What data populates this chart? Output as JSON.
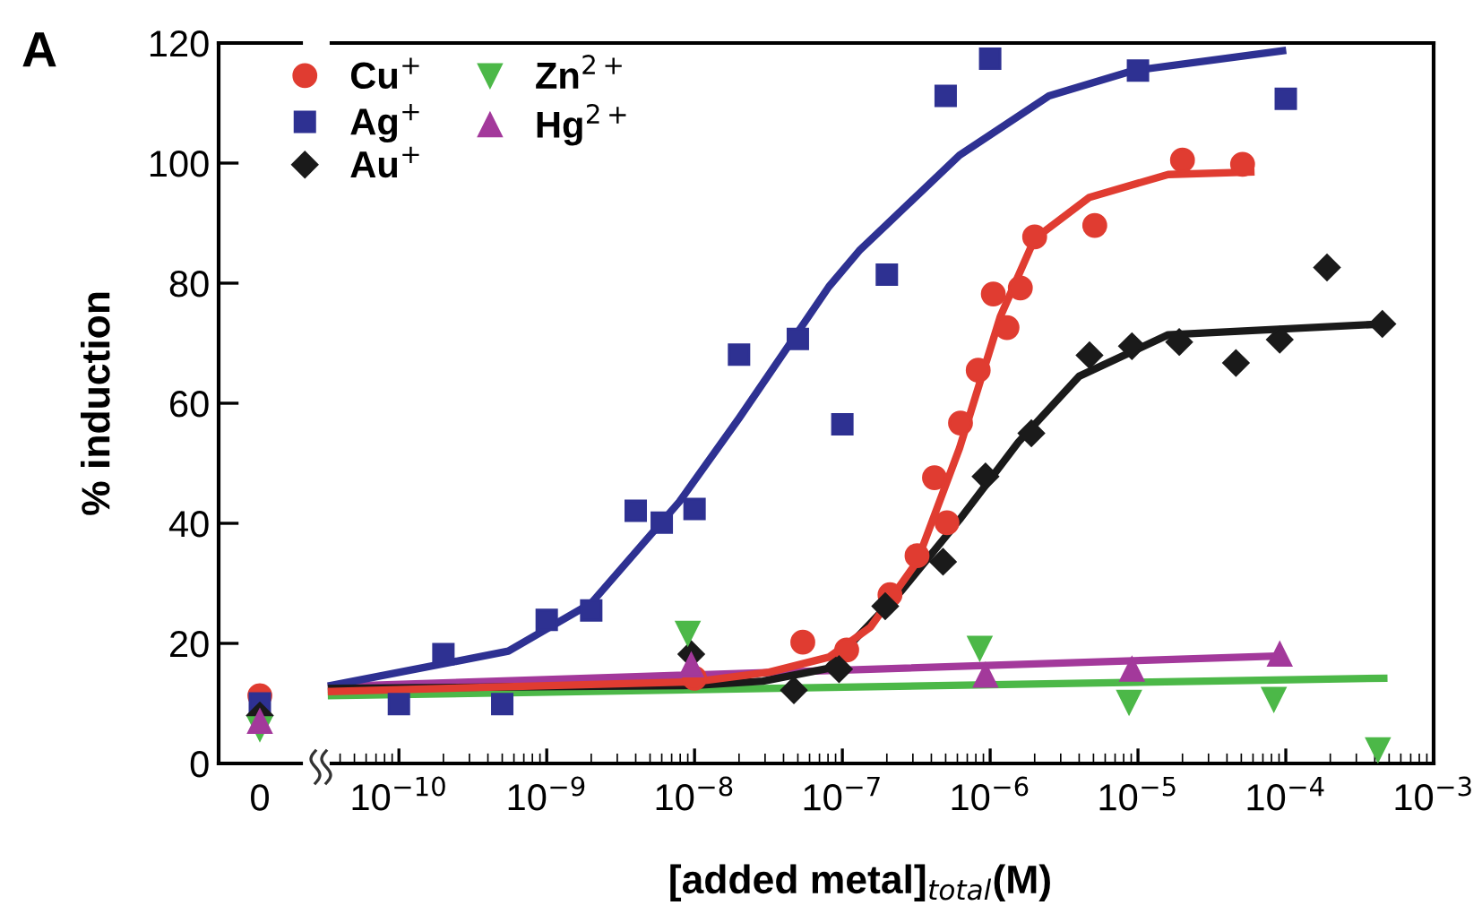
{
  "chart_data": [
    {
      "type": "scatter",
      "title": "A",
      "ylabel": "% induction",
      "categories": [
        "0"
      ],
      "ylim": [
        0,
        120
      ],
      "yticks": [
        0,
        20,
        40,
        60,
        80,
        100,
        120
      ],
      "legend": false,
      "series": [
        {
          "color": "#e03c31",
          "marker": "circle",
          "values": [
            11.3
          ]
        },
        {
          "color": "#2e3192",
          "marker": "square",
          "values": [
            10
          ]
        },
        {
          "color": "#1a1a1a",
          "marker": "diamond",
          "values": [
            8
          ]
        },
        {
          "color": "#4cb848",
          "marker": "triangle_down",
          "values": [
            5.8
          ]
        },
        {
          "color": "#a3399b",
          "marker": "triangle",
          "values": [
            7
          ]
        }
      ]
    },
    {
      "type": "scatter",
      "xlabel": "[added metal]$_{total}$(M)",
      "log": "x",
      "xlim": [
        3.5e-11,
        0.001
      ],
      "xticks": [
        {
          "value": 1e-10,
          "label": "10$^{−10}$"
        },
        {
          "value": 1e-09,
          "label": "10$^{−9}$"
        },
        {
          "value": 1e-08,
          "label": "10$^{−8}$"
        },
        {
          "value": 1e-07,
          "label": "10$^{−7}$"
        },
        {
          "value": 1e-06,
          "label": "10$^{−6}$"
        },
        {
          "value": 1e-05,
          "label": "10$^{−5}$"
        },
        {
          "value": 0.0001,
          "label": "10$^{−4}$"
        },
        {
          "value": 0.001,
          "label": "10$^{−3}$"
        }
      ],
      "ylim": [
        0,
        120
      ],
      "tick_labels": "x",
      "legend": "top left",
      "series": [
        {
          "name": "Cu$^{+}$",
          "color": "#e03c31",
          "marker": "circle",
          "x": [
            1e-08,
            5.4e-08,
            1.07e-07,
            2.1e-07,
            3.2e-07,
            4.2e-07,
            5.1e-07,
            6.3e-07,
            8.3e-07,
            1.05e-06,
            1.3e-06,
            1.6e-06,
            2e-06,
            5.1e-06,
            2e-05,
            5.1e-05
          ],
          "values": [
            14.2,
            20.2,
            18.9,
            28.1,
            34.6,
            47.6,
            40.1,
            56.7,
            65.5,
            78.2,
            72.6,
            79.2,
            87.7,
            89.6,
            100.5,
            99.8
          ]
        },
        {
          "name": "Ag$^{+}$",
          "color": "#2e3192",
          "marker": "square",
          "x": [
            1e-10,
            2e-10,
            5e-10,
            1e-09,
            2e-09,
            4e-09,
            6e-09,
            1e-08,
            2e-08,
            5e-08,
            1e-07,
            2e-07,
            5e-07,
            1e-06,
            1e-05,
            0.0001
          ],
          "values": [
            9.9,
            18.2,
            9.9,
            23.9,
            25.5,
            42.1,
            40.1,
            42.4,
            68.1,
            70.7,
            56.5,
            81.4,
            111.2,
            117.4,
            115.4,
            110.7
          ]
        },
        {
          "name": "Au$^{+}$",
          "color": "#1a1a1a",
          "marker": "diamond",
          "x": [
            9.5e-09,
            4.7e-08,
            9.5e-08,
            1.95e-07,
            4.8e-07,
            9.3e-07,
            1.9e-06,
            4.7e-06,
            9.1e-06,
            1.9e-05,
            4.6e-05,
            9.1e-05,
            0.00019,
            0.00045
          ],
          "values": [
            18.2,
            12.2,
            15.7,
            26.2,
            33.6,
            47.8,
            55.0,
            68.0,
            69.5,
            70.2,
            66.7,
            70.6,
            82.6,
            73.2
          ]
        },
        {
          "name": "Zn$^{2+}$",
          "color": "#4cb848",
          "marker": "triangle_down",
          "x": [
            9e-09,
            8.5e-07,
            8.7e-06,
            8.3e-05,
            0.00042
          ],
          "values": [
            21.7,
            19.2,
            10.2,
            10.7,
            2.3
          ]
        },
        {
          "name": "Hg$^{2+}$",
          "color": "#a3399b",
          "marker": "triangle",
          "x": [
            9.5e-09,
            9.3e-07,
            9.1e-06,
            9.1e-05
          ],
          "values": [
            16.4,
            14.7,
            15.7,
            18.2
          ]
        },
        {
          "type": "line",
          "color": "#4cb848",
          "x": [
            3.5e-11,
            0.00046
          ],
          "values": [
            11.3,
            14.2
          ]
        },
        {
          "type": "line",
          "color": "#a3399b",
          "x": [
            3.5e-11,
            9.1e-05
          ],
          "values": [
            12.8,
            17.9
          ]
        },
        {
          "type": "line",
          "color": "#2e3192",
          "x": [
            3.5e-11,
            5.5e-10,
            2e-09,
            7.9e-09,
            2e-08,
            8.1e-08,
            1.3e-07,
            6.2e-07,
            2.5e-06,
            9.3e-06,
            9.5e-05
          ],
          "values": [
            13,
            18.7,
            26.7,
            43.6,
            57.5,
            79.4,
            85.4,
            101.3,
            111.2,
            115.4,
            118.7
          ]
        },
        {
          "type": "line",
          "color": "#1a1a1a",
          "x": [
            3.5e-11,
            1e-08,
            2.9e-08,
            7.9e-08,
            2.5e-07,
            6.2e-07,
            1.55e-06,
            4e-06,
            1.6e-05,
            0.00045
          ],
          "values": [
            12.5,
            13,
            13.7,
            15.8,
            28.7,
            40.6,
            53.5,
            64.5,
            71.4,
            73.2
          ]
        },
        {
          "type": "line",
          "color": "#e03c31",
          "x": [
            3.5e-11,
            1e-08,
            3.2e-08,
            8.1e-08,
            1.55e-07,
            3.2e-07,
            6.2e-07,
            1.17e-06,
            2e-06,
            4.7e-06,
            1.6e-05,
            5.8e-05
          ],
          "values": [
            12,
            13.6,
            15.2,
            17.7,
            22.7,
            33.6,
            52.5,
            74.4,
            87.4,
            94.3,
            98.1,
            98.5
          ]
        }
      ]
    }
  ]
}
